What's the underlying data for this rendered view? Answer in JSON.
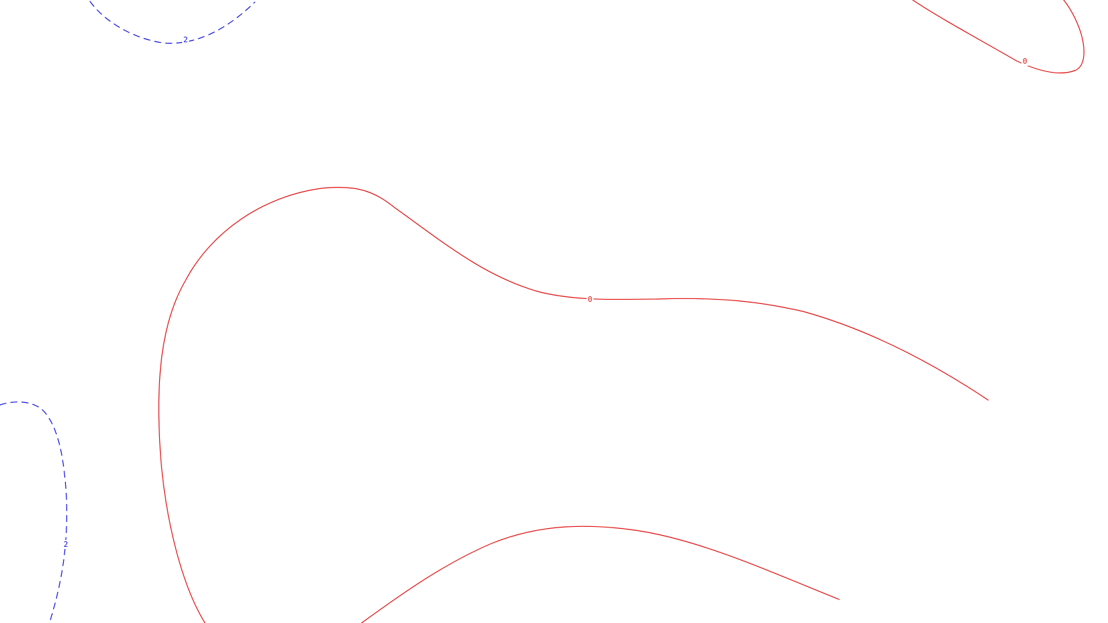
{
  "contours": {
    "negative_color": "#e01010",
    "positive_color": "#1010e0",
    "levels": [
      {
        "id": "zero-top-right",
        "level_label": "0",
        "style": "solid",
        "color_key": "negative"
      },
      {
        "id": "zero-center",
        "level_label": "0",
        "style": "solid",
        "color_key": "negative"
      },
      {
        "id": "zero-bottom",
        "level_label": "",
        "style": "solid",
        "color_key": "negative"
      },
      {
        "id": "two-top-left",
        "level_label": "2",
        "style": "dashed",
        "color_key": "positive"
      },
      {
        "id": "two-bottom-left",
        "level_label": "2",
        "style": "dashed",
        "color_key": "positive"
      }
    ]
  }
}
